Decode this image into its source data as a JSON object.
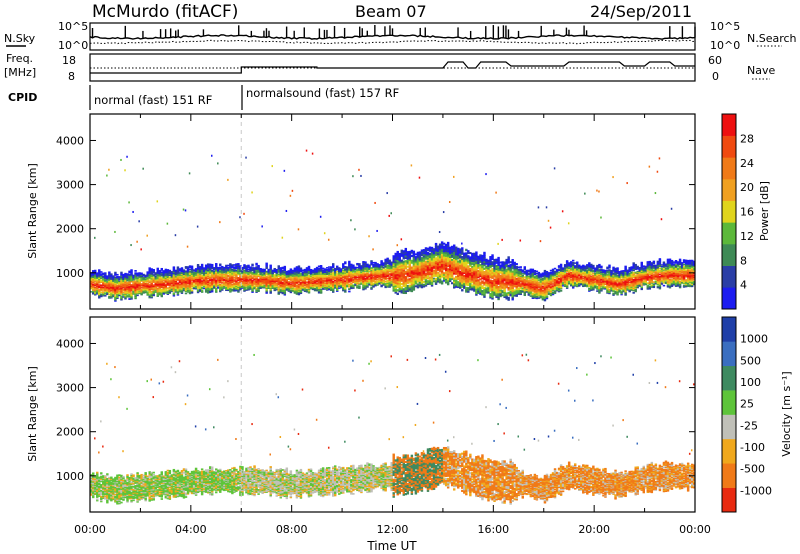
{
  "header": {
    "title": "McMurdo (fitACF)",
    "beam": "Beam 07",
    "date": "24/Sep/2011"
  },
  "noise_panel": {
    "left_label": "N.Sky",
    "right_label": "N.Search",
    "left_ticks": [
      "10^5",
      "10^0"
    ],
    "right_ticks": [
      "10^5",
      "10^0"
    ]
  },
  "freq_panel": {
    "left_label_1": "Freq.",
    "left_label_2": "[MHz]",
    "left_ticks": [
      "18",
      "8"
    ],
    "right_label": "Nave",
    "right_ticks": [
      "60",
      "0"
    ]
  },
  "cpid_panel": {
    "label": "CPID",
    "modes": [
      {
        "name": "normal (fast) 151 RF",
        "start_hour": 0,
        "end_hour": 6
      },
      {
        "name": "normalsound (fast) 157 RF",
        "start_hour": 6,
        "end_hour": 24
      }
    ]
  },
  "x_axis": {
    "label": "Time UT",
    "ticks": [
      "00:00",
      "04:00",
      "08:00",
      "12:00",
      "16:00",
      "20:00",
      "00:00"
    ]
  },
  "power_panel": {
    "ylabel": "Slant Range [km]",
    "yticks": [
      "1000",
      "2000",
      "3000",
      "4000"
    ],
    "colorbar_label": "Power [dB]",
    "colorbar_ticks": [
      "4",
      "8",
      "12",
      "16",
      "20",
      "24",
      "28"
    ],
    "colors": [
      "#1c1cf0",
      "#2a3ea6",
      "#3e8a55",
      "#5cb83a",
      "#e0d41c",
      "#f0a020",
      "#f07a18",
      "#f04a10",
      "#ee1010"
    ]
  },
  "velocity_panel": {
    "ylabel": "Slant Range [km]",
    "yticks": [
      "1000",
      "2000",
      "3000",
      "4000"
    ],
    "colorbar_label": "Velocity [m s⁻¹]",
    "colorbar_ticks": [
      "1000",
      "500",
      "100",
      "25",
      "-25",
      "-100",
      "-500",
      "-1000"
    ],
    "colors": [
      "#1f3fa8",
      "#3a6ec0",
      "#3e8a60",
      "#5ec43a",
      "#c0c0b8",
      "#f0a81c",
      "#f07a18",
      "#e82a10"
    ]
  },
  "chart_data": {
    "type": "heatmap",
    "x_range_hours": [
      0,
      24
    ],
    "y_range_km": [
      180,
      4600
    ],
    "band_center_km": [
      [
        0,
        800
      ],
      [
        1,
        700
      ],
      [
        2,
        760
      ],
      [
        3,
        800
      ],
      [
        4,
        860
      ],
      [
        5,
        900
      ],
      [
        6,
        900
      ],
      [
        7,
        880
      ],
      [
        8,
        820
      ],
      [
        9,
        860
      ],
      [
        10,
        900
      ],
      [
        11,
        960
      ],
      [
        12,
        1000
      ],
      [
        13,
        1080
      ],
      [
        14,
        1250
      ],
      [
        15,
        1050
      ],
      [
        16,
        900
      ],
      [
        17,
        850
      ],
      [
        18,
        700
      ],
      [
        19,
        1000
      ],
      [
        20,
        900
      ],
      [
        21,
        800
      ],
      [
        22,
        950
      ],
      [
        23,
        1000
      ],
      [
        24,
        1000
      ]
    ],
    "power_db_range": [
      0,
      30
    ],
    "velocity_range": [
      -1000,
      1000
    ]
  }
}
